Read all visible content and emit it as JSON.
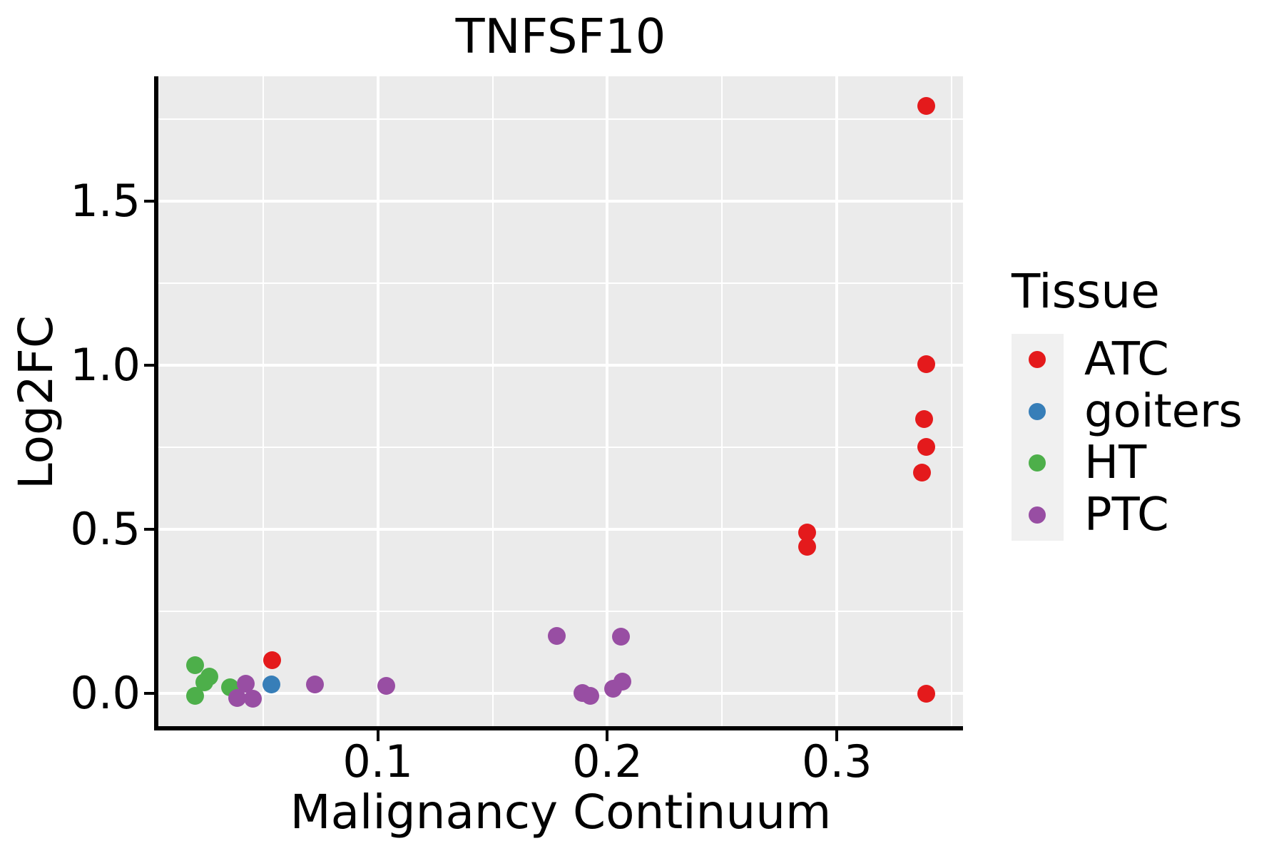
{
  "colors": {
    "background": "#FFFFFF",
    "panel_background": "#EBEBEB",
    "gridline": "#FFFFFF",
    "axis_line": "#000000",
    "text": "#000000",
    "legend_key_background": "#F0F0F0",
    "atc": "#E41A1C",
    "goiters": "#377EB8",
    "ht": "#4DAF4A",
    "ptc": "#984EA3"
  },
  "chart_data": {
    "type": "scatter",
    "title": "TNFSF10",
    "xlabel": "Malignancy Continuum",
    "ylabel": "Log2FC",
    "xlim": [
      0.0044,
      0.3549
    ],
    "ylim": [
      -0.107,
      1.881
    ],
    "grid": "on",
    "x_major_ticks": [
      0.1,
      0.2,
      0.3
    ],
    "x_tick_labels": [
      "0.1",
      "0.2",
      "0.3"
    ],
    "x_minor_gridlines": [
      0.05,
      0.15,
      0.25,
      0.35
    ],
    "y_major_ticks": [
      0.0,
      0.5,
      1.0,
      1.5
    ],
    "y_tick_labels": [
      "0.0",
      "0.5",
      "1.0",
      "1.5"
    ],
    "y_minor_gridlines": [
      0.25,
      0.75,
      1.25,
      1.75
    ],
    "legend": {
      "title": "Tissue",
      "position": "right"
    },
    "series": [
      {
        "name": "ATC",
        "color": "#E41A1C",
        "points": [
          [
            0.339,
            1.791
          ],
          [
            0.339,
            1.004
          ],
          [
            0.338,
            0.835
          ],
          [
            0.339,
            0.752
          ],
          [
            0.337,
            0.672
          ],
          [
            0.287,
            0.489
          ],
          [
            0.287,
            0.446
          ],
          [
            0.339,
            -0.002
          ],
          [
            0.054,
            0.1
          ]
        ]
      },
      {
        "name": "goiters",
        "color": "#377EB8",
        "points": [
          [
            0.0537,
            0.026
          ]
        ]
      },
      {
        "name": "HT",
        "color": "#4DAF4A",
        "points": [
          [
            0.0203,
            0.085
          ],
          [
            0.0265,
            0.05
          ],
          [
            0.0243,
            0.033
          ],
          [
            0.0203,
            -0.007
          ],
          [
            0.0355,
            0.017
          ]
        ]
      },
      {
        "name": "PTC",
        "color": "#984EA3",
        "points": [
          [
            0.0424,
            0.028
          ],
          [
            0.0386,
            -0.015
          ],
          [
            0.0455,
            -0.017
          ],
          [
            0.0726,
            0.026
          ],
          [
            0.1037,
            0.022
          ],
          [
            0.178,
            0.174
          ],
          [
            0.206,
            0.172
          ],
          [
            0.189,
            0.0
          ],
          [
            0.1925,
            -0.009
          ],
          [
            0.2025,
            0.013
          ],
          [
            0.2065,
            0.035
          ]
        ]
      }
    ]
  }
}
